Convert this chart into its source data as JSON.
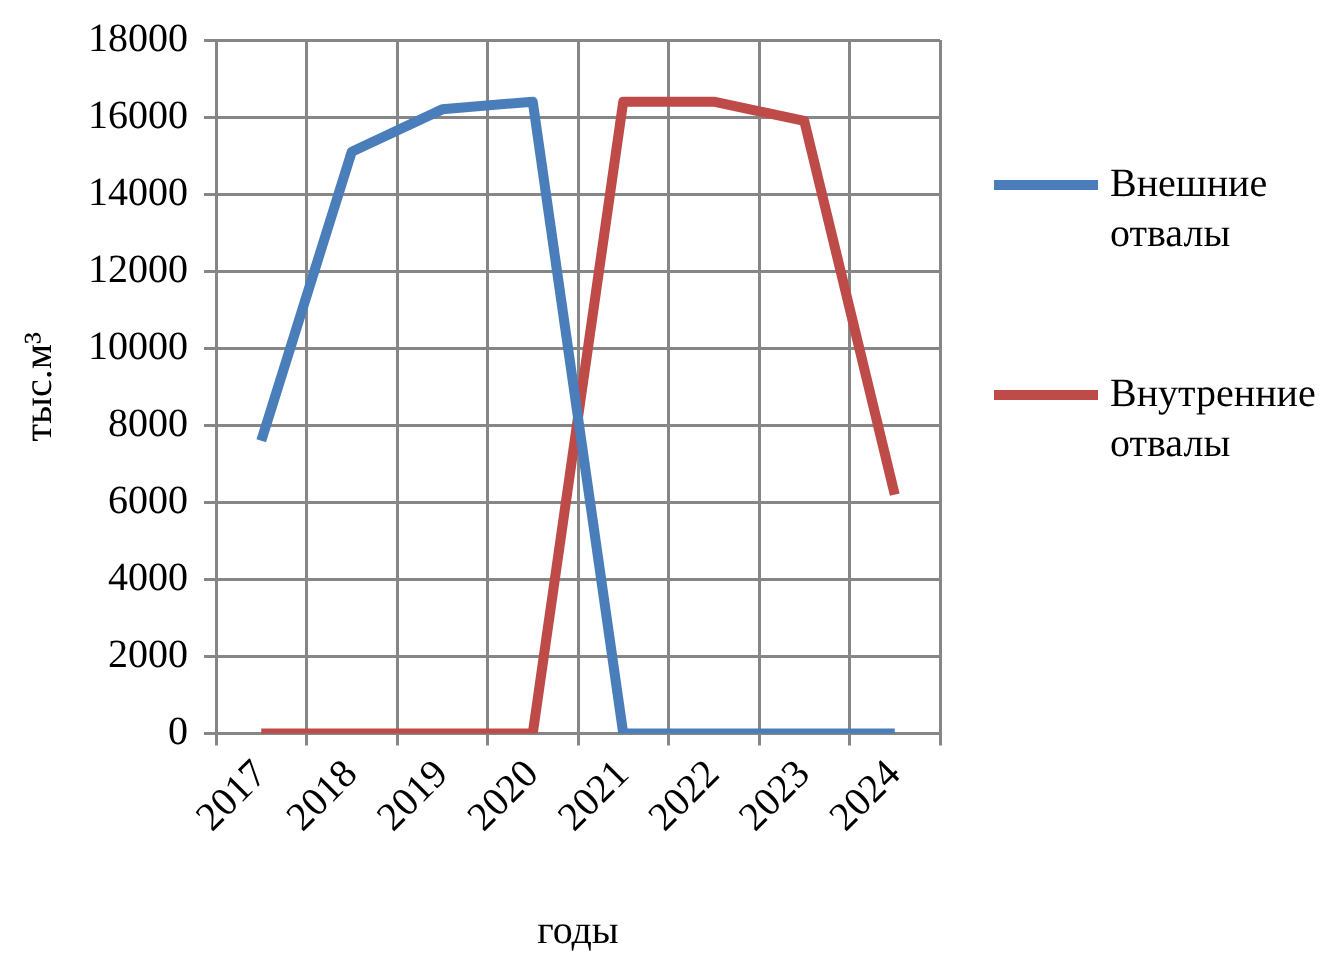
{
  "chart_data": {
    "type": "line",
    "xlabel": "годы",
    "ylabel": "тыс.м³",
    "categories": [
      "2017",
      "2018",
      "2019",
      "2020",
      "2021",
      "2022",
      "2023",
      "2024"
    ],
    "series": [
      {
        "name": "Внешние отвалы",
        "color": "#4a7ebb",
        "values": [
          7600,
          15100,
          16200,
          16400,
          0,
          0,
          0,
          0
        ]
      },
      {
        "name": "Внутренние отвалы",
        "color": "#be4b48",
        "values": [
          0,
          0,
          0,
          0,
          16400,
          16400,
          15900,
          6200
        ]
      }
    ],
    "ylim": [
      0,
      18000
    ],
    "yticks": [
      0,
      2000,
      4000,
      6000,
      8000,
      10000,
      12000,
      14000,
      16000,
      18000
    ],
    "grid": true,
    "legend": "right",
    "marker": "none",
    "line_style": "solid"
  }
}
